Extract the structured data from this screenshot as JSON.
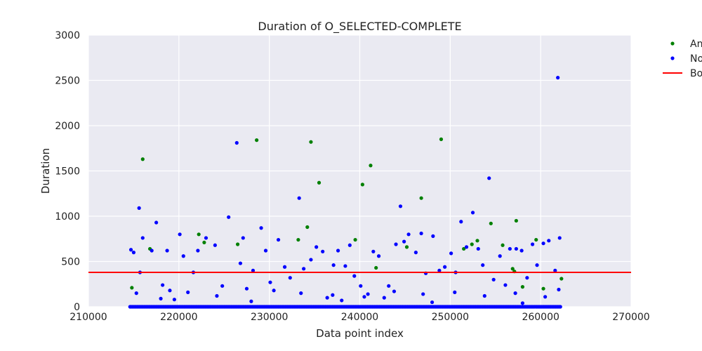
{
  "chart_data": {
    "type": "scatter",
    "title": "Duration of O_SELECTED-COMPLETE",
    "xlabel": "Data point index",
    "ylabel": "Duration",
    "xlim": [
      210000,
      270000
    ],
    "ylim": [
      0,
      3000
    ],
    "xticks": [
      "210000",
      "220000",
      "230000",
      "240000",
      "250000",
      "260000",
      "270000"
    ],
    "yticks": [
      "0",
      "500",
      "1000",
      "1500",
      "2000",
      "2500",
      "3000"
    ],
    "grid": true,
    "legend_placement": "outside-top-right",
    "colors": {
      "background": "#eaeaf2",
      "grid": "#ffffff",
      "anomaly": "#008000",
      "normal": "#0000ff",
      "boundary": "#ff0000"
    },
    "legend": [
      {
        "label": "An",
        "kind": "marker",
        "color": "#008000"
      },
      {
        "label": "No",
        "kind": "marker",
        "color": "#0000ff"
      },
      {
        "label": "Bo",
        "kind": "line",
        "color": "#ff0000"
      }
    ],
    "boundary": 380,
    "series": [
      {
        "name": "An",
        "x": [
          214800,
          216000,
          216800,
          222200,
          222800,
          226500,
          228600,
          233200,
          234200,
          234600,
          235500,
          239500,
          240300,
          241200,
          241800,
          245200,
          246800,
          249000,
          251500,
          252400,
          253000,
          254500,
          255800,
          256900,
          257100,
          257300,
          258000,
          259500,
          260300,
          262300
        ],
        "y": [
          210,
          1630,
          640,
          800,
          710,
          690,
          1840,
          740,
          880,
          1820,
          1370,
          740,
          1350,
          1560,
          430,
          660,
          1200,
          1850,
          640,
          690,
          730,
          920,
          680,
          420,
          390,
          950,
          220,
          740,
          200,
          310
        ]
      },
      {
        "name": "No",
        "x": [
          214700,
          215000,
          215600,
          215700,
          216000,
          217000,
          217500,
          218200,
          218700,
          219000,
          220100,
          220500,
          221600,
          222100,
          223000,
          224000,
          224800,
          225500,
          226400,
          226800,
          227100,
          228200,
          229100,
          229600,
          230100,
          231000,
          231700,
          232300,
          233300,
          233800,
          234600,
          235200,
          235900,
          236400,
          237100,
          237600,
          238400,
          238900,
          239400,
          240100,
          240900,
          241500,
          242100,
          242700,
          243200,
          244000,
          244500,
          244900,
          245400,
          246200,
          246800,
          247300,
          248100,
          248800,
          249400,
          250100,
          250600,
          251200,
          251800,
          252500,
          253100,
          253600,
          254300,
          254800,
          255500,
          256100,
          256600,
          257300,
          257900,
          258500,
          259100,
          259600,
          260300,
          260900,
          261600,
          261900,
          262100,
          215300,
          218000,
          221000,
          224200,
          227500,
          230500,
          233500,
          237000,
          240500,
          243800,
          247000,
          250500,
          253800,
          257200,
          260500,
          262000,
          219500,
          228000,
          238000,
          248000,
          258000
        ],
        "y": [
          630,
          600,
          1090,
          380,
          760,
          620,
          930,
          240,
          620,
          180,
          800,
          560,
          380,
          620,
          760,
          680,
          230,
          990,
          1810,
          480,
          760,
          400,
          870,
          620,
          270,
          740,
          440,
          320,
          1200,
          420,
          520,
          660,
          610,
          100,
          460,
          620,
          450,
          680,
          340,
          230,
          140,
          610,
          560,
          100,
          230,
          690,
          1110,
          720,
          800,
          600,
          810,
          370,
          780,
          400,
          440,
          590,
          380,
          940,
          660,
          1040,
          640,
          460,
          1420,
          300,
          560,
          240,
          640,
          640,
          620,
          320,
          690,
          460,
          700,
          730,
          400,
          2530,
          760,
          150,
          90,
          160,
          120,
          200,
          180,
          150,
          130,
          110,
          170,
          140,
          160,
          120,
          150,
          110,
          190,
          80,
          60,
          70,
          50,
          40
        ]
      }
    ]
  }
}
